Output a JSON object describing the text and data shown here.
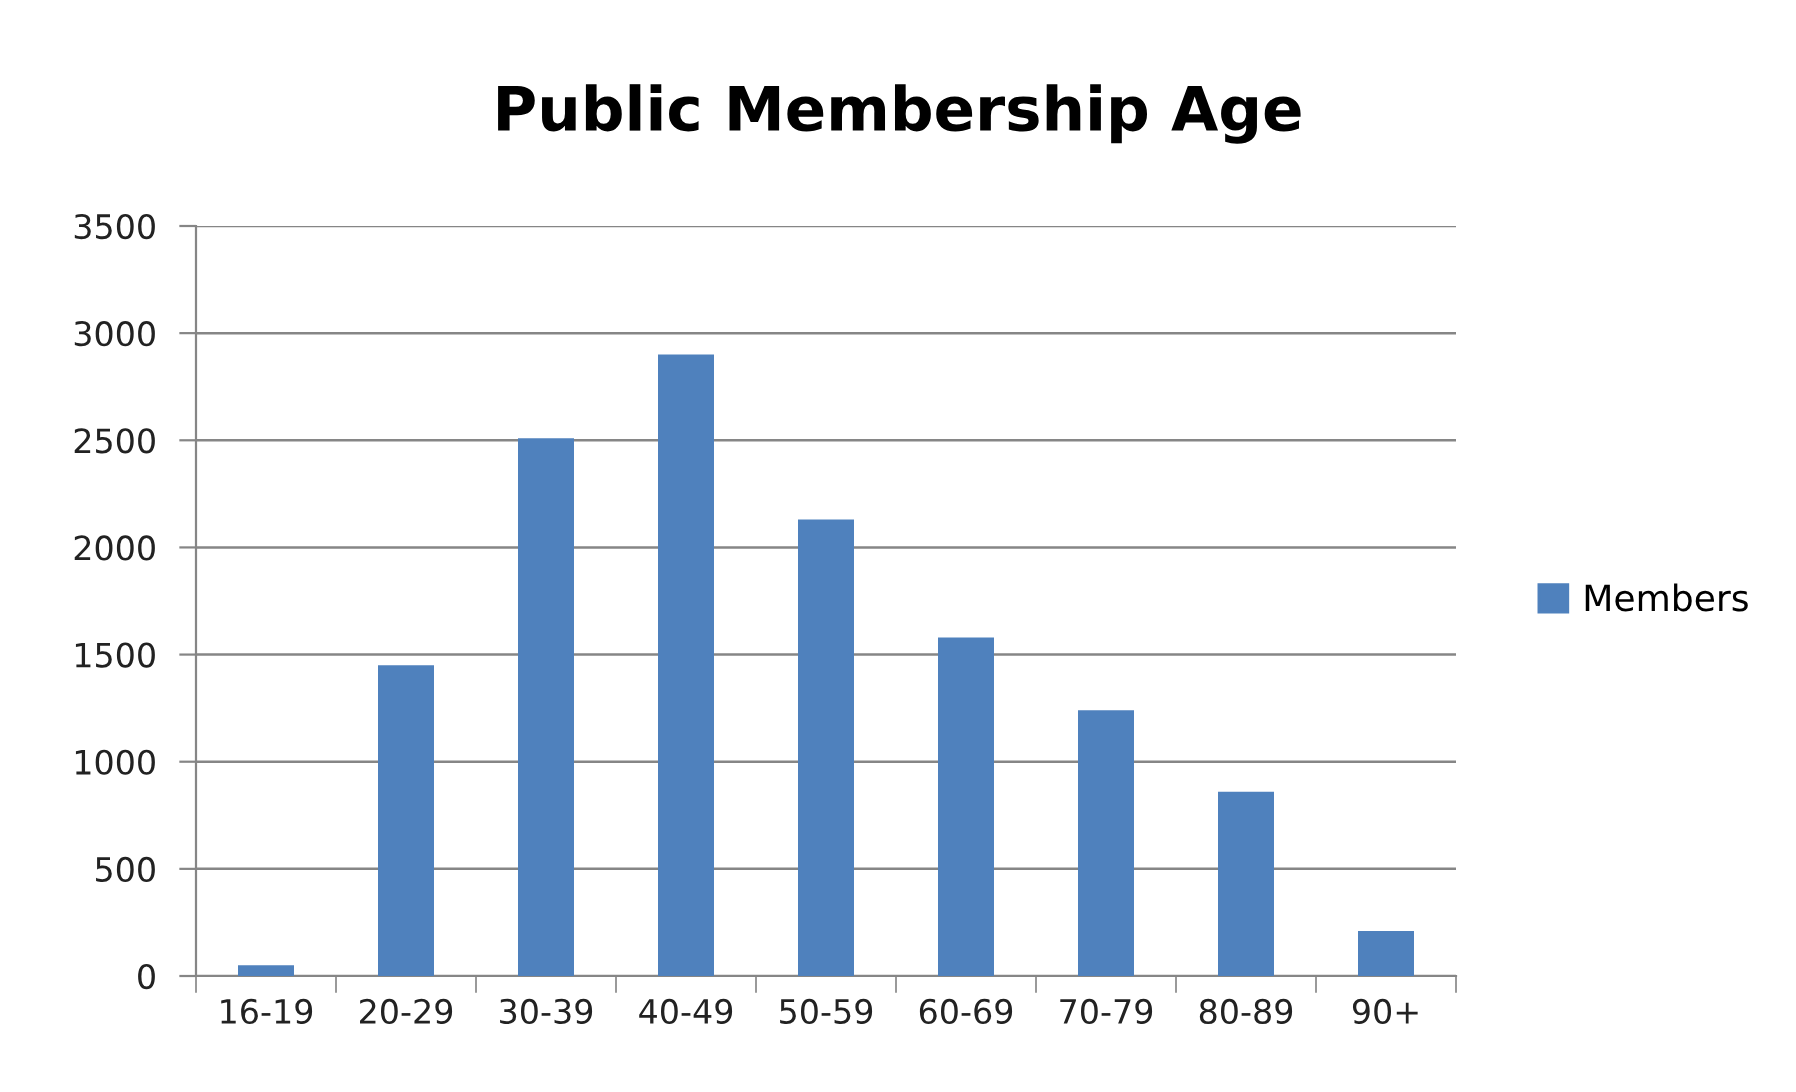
{
  "chart_data": {
    "type": "bar",
    "title": "Public Membership Age",
    "categories": [
      "16-19",
      "20-29",
      "30-39",
      "40-49",
      "50-59",
      "60-69",
      "70-79",
      "80-89",
      "90+"
    ],
    "series": [
      {
        "name": "Members",
        "color": "#4f81bd",
        "values": [
          50,
          1450,
          2510,
          2900,
          2130,
          1580,
          1240,
          860,
          210
        ]
      }
    ],
    "ylim": [
      0,
      3500
    ],
    "yticks": [
      0,
      500,
      1000,
      1500,
      2000,
      2500,
      3000,
      3500
    ],
    "grid": "y",
    "legend": "right"
  }
}
